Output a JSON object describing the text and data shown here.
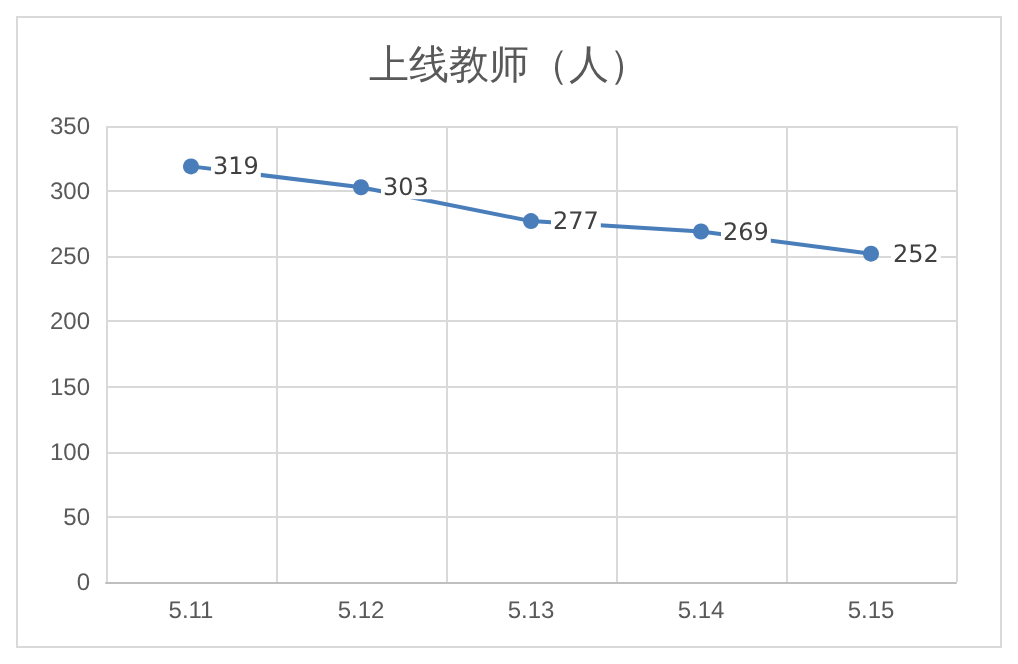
{
  "chart_data": {
    "type": "line",
    "title": "上线教师（人）",
    "categories": [
      "5.11",
      "5.12",
      "5.13",
      "5.14",
      "5.15"
    ],
    "series": [
      {
        "color": "#4a7ebb",
        "values": [
          319,
          303,
          277,
          269,
          252
        ]
      }
    ],
    "ylim": [
      0,
      350
    ],
    "yticks": [
      0,
      50,
      100,
      150,
      200,
      250,
      300,
      350
    ],
    "grid": true,
    "marker": "circle",
    "data_labels": true
  }
}
